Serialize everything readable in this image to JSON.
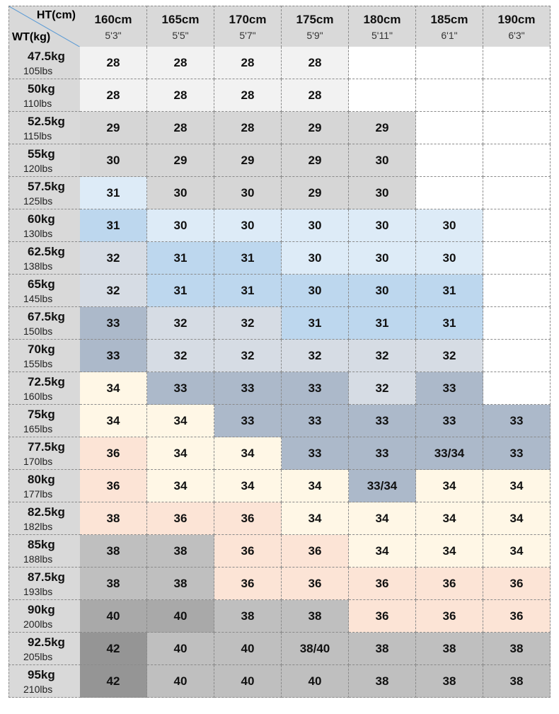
{
  "header": {
    "height_label": "HT(cm)",
    "weight_label": "WT(kg)"
  },
  "columns": [
    {
      "cm": "160cm",
      "ft": "5'3\""
    },
    {
      "cm": "165cm",
      "ft": "5'5\""
    },
    {
      "cm": "170cm",
      "ft": "5'7\""
    },
    {
      "cm": "175cm",
      "ft": "5'9\""
    },
    {
      "cm": "180cm",
      "ft": "5'11\""
    },
    {
      "cm": "185cm",
      "ft": "6'1\""
    },
    {
      "cm": "190cm",
      "ft": "6'3\""
    }
  ],
  "rows": [
    {
      "kg": "47.5kg",
      "lbs": "105lbs",
      "sizes": [
        "28",
        "28",
        "28",
        "28"
      ]
    },
    {
      "kg": "50kg",
      "lbs": "110lbs",
      "sizes": [
        "28",
        "28",
        "28",
        "28"
      ]
    },
    {
      "kg": "52.5kg",
      "lbs": "115lbs",
      "sizes": [
        "29",
        "28",
        "28",
        "29",
        "29"
      ]
    },
    {
      "kg": "55kg",
      "lbs": "120lbs",
      "sizes": [
        "30",
        "29",
        "29",
        "29",
        "30"
      ]
    },
    {
      "kg": "57.5kg",
      "lbs": "125lbs",
      "sizes": [
        "31",
        "30",
        "30",
        "29",
        "30"
      ]
    },
    {
      "kg": "60kg",
      "lbs": "130lbs",
      "sizes": [
        "31",
        "30",
        "30",
        "30",
        "30",
        "30"
      ]
    },
    {
      "kg": "62.5kg",
      "lbs": "138lbs",
      "sizes": [
        "32",
        "31",
        "31",
        "30",
        "30",
        "30"
      ]
    },
    {
      "kg": "65kg",
      "lbs": "145lbs",
      "sizes": [
        "32",
        "31",
        "31",
        "30",
        "30",
        "31"
      ]
    },
    {
      "kg": "67.5kg",
      "lbs": "150lbs",
      "sizes": [
        "33",
        "32",
        "32",
        "31",
        "31",
        "31"
      ]
    },
    {
      "kg": "70kg",
      "lbs": "155lbs",
      "sizes": [
        "33",
        "32",
        "32",
        "32",
        "32",
        "32"
      ]
    },
    {
      "kg": "72.5kg",
      "lbs": "160lbs",
      "sizes": [
        "34",
        "33",
        "33",
        "33",
        "32",
        "33"
      ]
    },
    {
      "kg": "75kg",
      "lbs": "165lbs",
      "sizes": [
        "34",
        "34",
        "33",
        "33",
        "33",
        "33",
        "33"
      ]
    },
    {
      "kg": "77.5kg",
      "lbs": "170lbs",
      "sizes": [
        "36",
        "34",
        "34",
        "33",
        "33",
        "33/34",
        "33"
      ]
    },
    {
      "kg": "80kg",
      "lbs": "177lbs",
      "sizes": [
        "36",
        "34",
        "34",
        "34",
        "33/34",
        "34",
        "34"
      ]
    },
    {
      "kg": "82.5kg",
      "lbs": "182lbs",
      "sizes": [
        "38",
        "36",
        "36",
        "34",
        "34",
        "34",
        "34"
      ]
    },
    {
      "kg": "85kg",
      "lbs": "188lbs",
      "sizes": [
        "38",
        "38",
        "36",
        "36",
        "34",
        "34",
        "34"
      ]
    },
    {
      "kg": "87.5kg",
      "lbs": "193lbs",
      "sizes": [
        "38",
        "38",
        "36",
        "36",
        "36",
        "36",
        "36"
      ]
    },
    {
      "kg": "90kg",
      "lbs": "200lbs",
      "sizes": [
        "40",
        "40",
        "38",
        "38",
        "36",
        "36",
        "36"
      ]
    },
    {
      "kg": "92.5kg",
      "lbs": "205lbs",
      "sizes": [
        "42",
        "40",
        "40",
        "38/40",
        "38",
        "38",
        "38"
      ]
    },
    {
      "kg": "95kg",
      "lbs": "210lbs",
      "sizes": [
        "42",
        "40",
        "40",
        "40",
        "38",
        "38",
        "38"
      ]
    }
  ]
}
